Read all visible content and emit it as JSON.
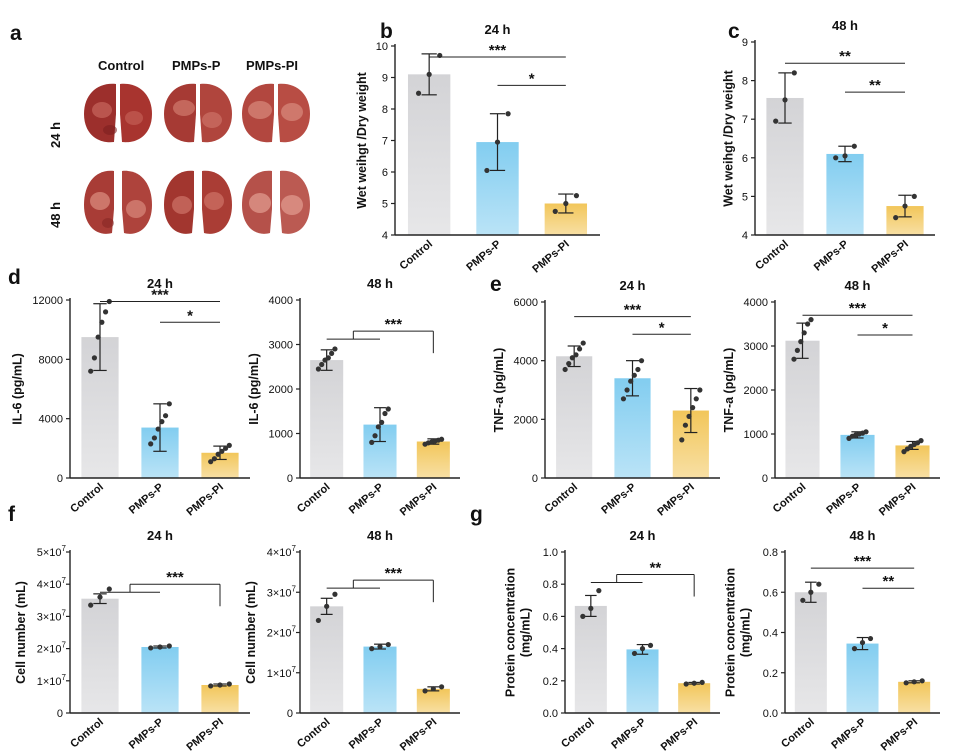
{
  "panel_a": {
    "label": "a",
    "columns": [
      "Control",
      "PMPs-P",
      "PMPs-PI"
    ],
    "rows": [
      "24 h",
      "48 h"
    ]
  },
  "colors": {
    "control": "#d3d3d6",
    "pmps_p": "#82cdf0",
    "pmps_pi": "#f2c65a",
    "axis": "#222222",
    "dot": "#333333"
  },
  "chart_data": [
    {
      "id": "b",
      "panel_label": "b",
      "type": "bar",
      "title": "24 h",
      "ylabel": "Wet weihgt /Dry weight",
      "categories": [
        "Control",
        "PMPs-P",
        "PMPs-PI"
      ],
      "values": [
        9.1,
        6.95,
        5.0
      ],
      "errors": [
        0.65,
        0.9,
        0.3
      ],
      "points": [
        [
          8.5,
          9.1,
          9.7
        ],
        [
          6.05,
          6.95,
          7.85
        ],
        [
          4.75,
          5.0,
          5.25
        ]
      ],
      "ylim": [
        4,
        10
      ],
      "yticks": [
        4,
        5,
        6,
        7,
        8,
        9,
        10
      ],
      "ytick_labels": [
        "4",
        "5",
        "6",
        "7",
        "8",
        "9",
        "10"
      ],
      "annotations": [
        {
          "from": 0,
          "to": 2,
          "text": "***",
          "y": 9.65
        },
        {
          "from": 1,
          "to": 2,
          "text": "*",
          "y": 8.75
        }
      ]
    },
    {
      "id": "c",
      "panel_label": "c",
      "type": "bar",
      "title": "48 h",
      "ylabel": "Wet weihgt /Dry weight",
      "categories": [
        "Control",
        "PMPs-P",
        "PMPs-PI"
      ],
      "values": [
        7.55,
        6.1,
        4.75
      ],
      "errors": [
        0.65,
        0.2,
        0.28
      ],
      "points": [
        [
          6.95,
          7.5,
          8.2
        ],
        [
          6.0,
          6.05,
          6.3
        ],
        [
          4.45,
          4.75,
          5.0
        ]
      ],
      "ylim": [
        4,
        9
      ],
      "yticks": [
        4,
        5,
        6,
        7,
        8,
        9
      ],
      "ytick_labels": [
        "4",
        "5",
        "6",
        "7",
        "8",
        "9"
      ],
      "annotations": [
        {
          "from": 0,
          "to": 2,
          "text": "**",
          "y": 8.45
        },
        {
          "from": 1,
          "to": 2,
          "text": "**",
          "y": 7.7
        }
      ]
    },
    {
      "id": "d1",
      "panel_label": "d",
      "type": "bar",
      "title": "24 h",
      "ylabel": "IL-6 (pg/mL)",
      "categories": [
        "Control",
        "PMPs-P",
        "PMPs-PI"
      ],
      "values": [
        9500,
        3400,
        1700
      ],
      "errors": [
        2250,
        1600,
        450
      ],
      "points": [
        [
          7200,
          8100,
          9500,
          10500,
          11200,
          11900
        ],
        [
          2300,
          2700,
          3300,
          3800,
          4200,
          5000
        ],
        [
          1100,
          1300,
          1600,
          1800,
          2000,
          2200
        ]
      ],
      "ylim": [
        0,
        12000
      ],
      "yticks": [
        0,
        4000,
        8000,
        12000
      ],
      "ytick_labels": [
        "0",
        "4000",
        "8000",
        "12000"
      ],
      "annotations": [
        {
          "from": 0,
          "to": 2,
          "text": "***",
          "y": 11900
        },
        {
          "from": 1,
          "to": 2,
          "text": "*",
          "y": 10500
        }
      ]
    },
    {
      "id": "d2",
      "type": "bar",
      "title": "48 h",
      "ylabel": "IL-6 (pg/mL)",
      "categories": [
        "Control",
        "PMPs-P",
        "PMPs-PI"
      ],
      "values": [
        2650,
        1200,
        820
      ],
      "errors": [
        230,
        380,
        60
      ],
      "points": [
        [
          2450,
          2550,
          2650,
          2700,
          2800,
          2900
        ],
        [
          800,
          950,
          1150,
          1250,
          1450,
          1550
        ],
        [
          760,
          790,
          810,
          830,
          850,
          870
        ]
      ],
      "ylim": [
        0,
        4000
      ],
      "yticks": [
        0,
        1000,
        2000,
        3000,
        4000
      ],
      "ytick_labels": [
        "0",
        "1000",
        "2000",
        "3000",
        "4000"
      ],
      "annotations": [
        {
          "group": [
            0,
            1
          ],
          "to": 2,
          "text": "***",
          "y": 3300
        }
      ]
    },
    {
      "id": "e1",
      "panel_label": "e",
      "type": "bar",
      "title": "24 h",
      "ylabel": "TNF-a (pg/mL)",
      "categories": [
        "Control",
        "PMPs-P",
        "PMPs-PI"
      ],
      "values": [
        4150,
        3400,
        2300
      ],
      "errors": [
        350,
        600,
        750
      ],
      "points": [
        [
          3700,
          3900,
          4100,
          4200,
          4400,
          4600
        ],
        [
          2700,
          3000,
          3300,
          3500,
          3700,
          4000
        ],
        [
          1300,
          1800,
          2100,
          2400,
          2700,
          3000
        ]
      ],
      "ylim": [
        0,
        6000
      ],
      "yticks": [
        0,
        2000,
        4000,
        6000
      ],
      "ytick_labels": [
        "0",
        "2000",
        "4000",
        "6000"
      ],
      "annotations": [
        {
          "from": 0,
          "to": 2,
          "text": "***",
          "y": 5500
        },
        {
          "from": 1,
          "to": 2,
          "text": "*",
          "y": 4900
        }
      ]
    },
    {
      "id": "e2",
      "type": "bar",
      "title": "48 h",
      "ylabel": "TNF-a (pg/mL)",
      "categories": [
        "Control",
        "PMPs-P",
        "PMPs-PI"
      ],
      "values": [
        3120,
        980,
        740
      ],
      "errors": [
        400,
        70,
        90
      ],
      "points": [
        [
          2700,
          2900,
          3100,
          3300,
          3500,
          3600
        ],
        [
          900,
          950,
          980,
          1000,
          1020,
          1050
        ],
        [
          600,
          660,
          720,
          760,
          800,
          850
        ]
      ],
      "ylim": [
        0,
        4000
      ],
      "yticks": [
        0,
        1000,
        2000,
        3000,
        4000
      ],
      "ytick_labels": [
        "0",
        "1000",
        "2000",
        "3000",
        "4000"
      ],
      "annotations": [
        {
          "from": 0,
          "to": 2,
          "text": "***",
          "y": 3700
        },
        {
          "from": 1,
          "to": 2,
          "text": "*",
          "y": 3250
        }
      ]
    },
    {
      "id": "f1",
      "panel_label": "f",
      "type": "bar",
      "title": "24 h",
      "ylabel": "Cell number (mL)",
      "categories": [
        "Control",
        "PMPs-P",
        "PMPs-PI"
      ],
      "values": [
        35500000,
        20500000,
        8700000
      ],
      "errors": [
        1500000,
        300000,
        300000
      ],
      "points": [
        [
          33500000,
          36000000,
          38500000
        ],
        [
          20200000,
          20500000,
          20800000
        ],
        [
          8400000,
          8700000,
          9000000
        ]
      ],
      "ylim": [
        0,
        50000000
      ],
      "yticks": [
        0,
        10000000,
        20000000,
        30000000,
        40000000,
        50000000
      ],
      "ytick_labels": [
        "0",
        "1×10",
        "2×10",
        "3×10",
        "4×10",
        "5×10"
      ],
      "ytick_exp": "7",
      "annotations": [
        {
          "group": [
            0,
            1
          ],
          "to": 2,
          "text": "***",
          "y": 40000000
        }
      ]
    },
    {
      "id": "f2",
      "type": "bar",
      "title": "48 h",
      "ylabel": "Cell number (mL)",
      "categories": [
        "Control",
        "PMPs-P",
        "PMPs-PI"
      ],
      "values": [
        26500000,
        16500000,
        6000000
      ],
      "errors": [
        2000000,
        600000,
        500000
      ],
      "points": [
        [
          23000000,
          26500000,
          29500000
        ],
        [
          16000000,
          16500000,
          17000000
        ],
        [
          5500000,
          6000000,
          6500000
        ]
      ],
      "ylim": [
        0,
        40000000
      ],
      "yticks": [
        0,
        10000000,
        20000000,
        30000000,
        40000000
      ],
      "ytick_labels": [
        "0",
        "1×10",
        "2×10",
        "3×10",
        "4×10"
      ],
      "ytick_exp": "7",
      "annotations": [
        {
          "group": [
            0,
            1
          ],
          "to": 2,
          "text": "***",
          "y": 33000000
        }
      ]
    },
    {
      "id": "g1",
      "panel_label": "g",
      "type": "bar",
      "title": "24 h",
      "ylabel": "Protein concentration (mg/mL)",
      "ylabel_lines": [
        "Protein concentration",
        "(mg/mL)"
      ],
      "categories": [
        "Control",
        "PMPs-P",
        "PMPs-PI"
      ],
      "values": [
        0.665,
        0.395,
        0.185
      ],
      "errors": [
        0.065,
        0.03,
        0.005
      ],
      "points": [
        [
          0.6,
          0.65,
          0.76
        ],
        [
          0.37,
          0.4,
          0.42
        ],
        [
          0.18,
          0.185,
          0.19
        ]
      ],
      "ylim": [
        0,
        1.0
      ],
      "yticks": [
        0,
        0.2,
        0.4,
        0.6,
        0.8,
        1.0
      ],
      "ytick_labels": [
        "0.0",
        "0.2",
        "0.4",
        "0.6",
        "0.8",
        "1.0"
      ],
      "annotations": [
        {
          "group": [
            0,
            1
          ],
          "to": 2,
          "text": "**",
          "y": 0.86
        }
      ]
    },
    {
      "id": "g2",
      "type": "bar",
      "title": "48 h",
      "ylabel": "Protein concentration (mg/mL)",
      "ylabel_lines": [
        "Protein concentration",
        "(mg/mL)"
      ],
      "categories": [
        "Control",
        "PMPs-P",
        "PMPs-PI"
      ],
      "values": [
        0.6,
        0.345,
        0.155
      ],
      "errors": [
        0.05,
        0.03,
        0.005
      ],
      "points": [
        [
          0.56,
          0.6,
          0.64
        ],
        [
          0.32,
          0.35,
          0.37
        ],
        [
          0.15,
          0.155,
          0.16
        ]
      ],
      "ylim": [
        0,
        0.8
      ],
      "yticks": [
        0,
        0.2,
        0.4,
        0.6,
        0.8
      ],
      "ytick_labels": [
        "0.0",
        "0.2",
        "0.4",
        "0.6",
        "0.8"
      ],
      "annotations": [
        {
          "from": 0,
          "to": 2,
          "text": "***",
          "y": 0.72
        },
        {
          "from": 1,
          "to": 2,
          "text": "**",
          "y": 0.62
        }
      ]
    }
  ]
}
